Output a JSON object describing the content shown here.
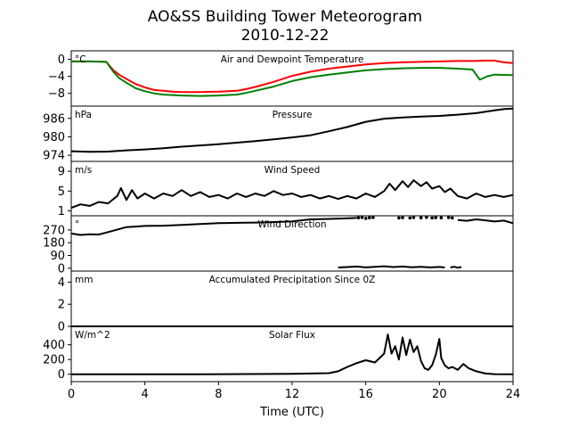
{
  "figure": {
    "title_line1": "AO&SS Building Tower Meteorogram",
    "title_line2": "2010-12-22",
    "xlabel": "Time (UTC)"
  },
  "chart_data": {
    "type": "line",
    "x_axis": {
      "label": "Time (UTC)",
      "xlim": [
        0,
        24
      ],
      "ticks": [
        0,
        4,
        8,
        12,
        16,
        20,
        24
      ]
    },
    "panels": [
      {
        "id": "temp",
        "title": "Air and Dewpoint Temperature",
        "unit": "°C",
        "ylim": [
          -11,
          2
        ],
        "yticks": [
          0,
          -4,
          -8
        ],
        "ytick_labels": [
          "0",
          "−4",
          "−8"
        ],
        "series": [
          {
            "color": "#ff0000",
            "x": [
              0,
              1,
              1.9,
              2.1,
              2.3,
              2.6,
              3,
              3.5,
              4,
              4.5,
              5,
              5.5,
              6,
              7,
              8,
              9,
              9.5,
              10,
              11,
              12,
              13,
              14,
              15,
              16,
              17,
              18,
              19,
              20,
              21,
              22,
              22.5,
              23,
              23.5,
              24
            ],
            "y": [
              -0.5,
              -0.5,
              -0.6,
              -1.6,
              -2.6,
              -3.6,
              -4.6,
              -5.8,
              -6.6,
              -7.2,
              -7.4,
              -7.6,
              -7.7,
              -7.7,
              -7.6,
              -7.4,
              -7.0,
              -6.5,
              -5.3,
              -3.9,
              -2.9,
              -2.2,
              -1.7,
              -1.2,
              -0.9,
              -0.7,
              -0.6,
              -0.5,
              -0.4,
              -0.4,
              -0.3,
              -0.3,
              -0.7,
              -0.9
            ]
          },
          {
            "color": "#008000",
            "x": [
              0,
              1,
              1.9,
              2.1,
              2.3,
              2.6,
              3,
              3.5,
              4,
              4.5,
              5,
              5.5,
              6,
              7,
              8,
              9,
              9.5,
              10,
              11,
              12,
              13,
              14,
              15,
              16,
              17,
              18,
              19,
              20,
              21,
              21.8,
              22.2,
              22.6,
              23,
              24
            ],
            "y": [
              -0.5,
              -0.5,
              -0.6,
              -1.8,
              -3.0,
              -4.4,
              -5.5,
              -6.8,
              -7.5,
              -8.0,
              -8.3,
              -8.4,
              -8.5,
              -8.6,
              -8.5,
              -8.3,
              -7.9,
              -7.4,
              -6.4,
              -5.1,
              -4.2,
              -3.6,
              -3.1,
              -2.6,
              -2.3,
              -2.1,
              -2.0,
              -2.0,
              -2.2,
              -2.4,
              -4.8,
              -4.0,
              -3.6,
              -3.7
            ]
          }
        ]
      },
      {
        "id": "pressure",
        "title": "Pressure",
        "unit": "hPa",
        "ylim": [
          972,
          990
        ],
        "yticks": [
          974,
          980,
          986
        ],
        "ytick_labels": [
          "974",
          "980",
          "986"
        ],
        "series": [
          {
            "color": "#000000",
            "x": [
              0,
              1,
              2,
              3,
              4,
              5,
              6,
              7,
              8,
              9,
              10,
              11,
              12,
              13,
              14,
              15,
              16,
              17,
              18,
              19,
              20,
              21,
              22,
              23,
              23.5,
              24
            ],
            "y": [
              975.3,
              975.1,
              975.2,
              975.6,
              975.9,
              976.3,
              976.8,
              977.2,
              977.6,
              978.1,
              978.6,
              979.2,
              979.8,
              980.5,
              981.8,
              983.2,
              984.9,
              985.9,
              986.3,
              986.6,
              986.8,
              987.2,
              987.7,
              988.6,
              989.0,
              989.2
            ]
          }
        ]
      },
      {
        "id": "wind_speed",
        "title": "Wind Speed",
        "unit": "m/s",
        "ylim": [
          0,
          11
        ],
        "yticks": [
          1,
          5,
          9
        ],
        "ytick_labels": [
          "1",
          "5",
          "9"
        ],
        "series": [
          {
            "color": "#000000",
            "x": [
              0,
              0.5,
              1,
              1.5,
              2,
              2.5,
              2.7,
              3,
              3.3,
              3.6,
              4,
              4.5,
              5,
              5.5,
              6,
              6.5,
              7,
              7.5,
              8,
              8.5,
              9,
              9.5,
              10,
              10.5,
              11,
              11.5,
              12,
              12.5,
              13,
              13.5,
              14,
              14.5,
              15,
              15.5,
              16,
              16.5,
              17,
              17.3,
              17.6,
              18,
              18.3,
              18.6,
              19,
              19.3,
              19.6,
              20,
              20.3,
              20.6,
              21,
              21.5,
              22,
              22.5,
              23,
              23.5,
              24
            ],
            "y": [
              1.6,
              2.3,
              2.0,
              2.8,
              2.5,
              4.0,
              5.6,
              3.2,
              5.2,
              3.5,
              4.5,
              3.5,
              4.5,
              4.0,
              5.2,
              4.0,
              4.8,
              3.8,
              4.2,
              3.5,
              4.5,
              3.8,
              4.5,
              4.0,
              5.0,
              4.2,
              4.5,
              3.8,
              4.2,
              3.5,
              4.0,
              3.4,
              4.0,
              3.5,
              4.5,
              3.8,
              5.0,
              6.5,
              5.2,
              7.0,
              5.8,
              7.2,
              6.0,
              6.8,
              5.5,
              6.0,
              4.8,
              5.5,
              4.0,
              3.5,
              4.5,
              3.8,
              4.2,
              3.8,
              4.2
            ]
          }
        ]
      },
      {
        "id": "wind_dir",
        "title": "Wind Direction",
        "unit": "°",
        "ylim": [
          -20,
          370
        ],
        "yticks": [
          0,
          90,
          180,
          270
        ],
        "ytick_labels": [
          "0",
          "90",
          "180",
          "270"
        ],
        "series": [
          {
            "color": "#000000",
            "style": "line",
            "x": [
              0,
              0.5,
              1,
              1.5,
              2,
              3,
              4,
              5,
              6,
              7,
              8,
              9,
              10,
              11,
              12,
              12.5,
              13,
              14,
              15,
              15.5
            ],
            "y": [
              245,
              235,
              240,
              238,
              255,
              290,
              298,
              300,
              305,
              312,
              318,
              320,
              322,
              326,
              330,
              338,
              345,
              348,
              352,
              355
            ]
          },
          {
            "color": "#000000",
            "style": "points",
            "x": [
              15.6,
              15.8,
              16.0,
              16.2,
              16.4,
              17.8,
              18.0,
              18.4,
              18.6,
              19.0,
              19.3,
              19.6,
              19.8,
              20.1,
              20.5,
              20.7
            ],
            "y": [
              356,
              358,
              352,
              356,
              358,
              355,
              357,
              354,
              358,
              356,
              359,
              355,
              357,
              356,
              358,
              355
            ]
          },
          {
            "color": "#000000",
            "style": "line",
            "x": [
              21,
              21.5,
              22,
              22.5,
              23,
              23.5,
              24
            ],
            "y": [
              340,
              335,
              345,
              338,
              330,
              336,
              318
            ]
          },
          {
            "color": "#000000",
            "style": "line",
            "x": [
              14.5,
              15,
              15.5,
              16,
              16.5,
              17,
              17.5,
              18,
              18.5,
              19,
              19.5,
              20,
              20.3
            ],
            "y": [
              5,
              8,
              12,
              6,
              10,
              14,
              8,
              12,
              7,
              10,
              6,
              9,
              5
            ]
          },
          {
            "color": "#000000",
            "style": "line",
            "x": [
              20.6,
              20.8,
              21.0,
              21.2
            ],
            "y": [
              6,
              10,
              4,
              8
            ]
          }
        ]
      },
      {
        "id": "precip",
        "title": "Accumulated Precipitation Since 0Z",
        "unit": "mm",
        "ylim": [
          0,
          5
        ],
        "yticks": [
          0,
          2,
          4
        ],
        "ytick_labels": [
          "0",
          "2",
          "4"
        ],
        "series": [
          {
            "color": "#000000",
            "x": [
              0,
              24
            ],
            "y": [
              0,
              0
            ]
          }
        ]
      },
      {
        "id": "solar",
        "title": "Solar Flux",
        "unit": "W/m^2",
        "ylim": [
          -100,
          650
        ],
        "yticks": [
          0,
          200,
          400
        ],
        "ytick_labels": [
          "0",
          "200",
          "400"
        ],
        "series": [
          {
            "color": "#000000",
            "x": [
              0,
              7,
              12,
              14,
              14.5,
              15,
              15.5,
              16,
              16.5,
              17,
              17.2,
              17.4,
              17.6,
              17.8,
              18,
              18.2,
              18.4,
              18.6,
              18.8,
              19.0,
              19.2,
              19.4,
              19.6,
              19.8,
              20.0,
              20.1,
              20.3,
              20.5,
              20.7,
              21,
              21.3,
              21.6,
              22,
              22.5,
              23,
              24
            ],
            "y": [
              0,
              0,
              5,
              15,
              40,
              100,
              150,
              190,
              160,
              280,
              540,
              280,
              380,
              200,
              500,
              260,
              470,
              300,
              380,
              180,
              80,
              60,
              120,
              260,
              480,
              220,
              120,
              80,
              100,
              60,
              140,
              80,
              40,
              10,
              2,
              0
            ]
          }
        ]
      }
    ]
  }
}
